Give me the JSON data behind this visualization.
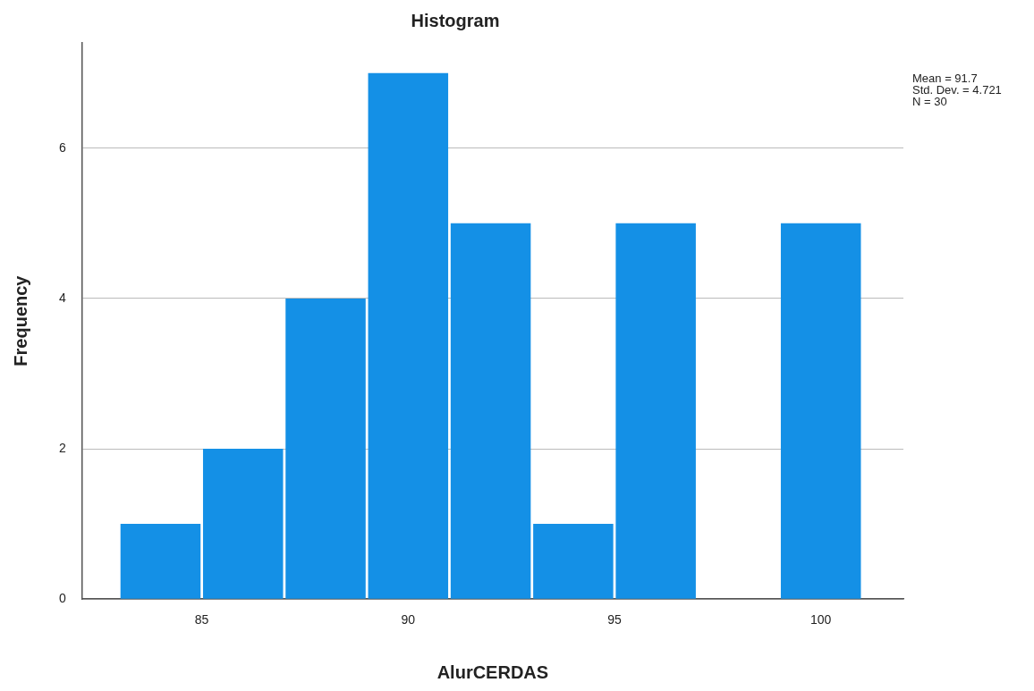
{
  "chart_data": {
    "type": "histogram",
    "title": "Histogram",
    "xlabel": "AlurCERDAS",
    "ylabel": "Frequency",
    "bins": [
      83,
      85,
      87,
      89,
      91,
      93,
      95,
      97,
      99,
      101
    ],
    "values": [
      1,
      2,
      4,
      7,
      5,
      1,
      5,
      0,
      5
    ],
    "color": "#1490e6",
    "xlim": [
      82.1,
      102
    ],
    "xticks": [
      85,
      90,
      95,
      100
    ],
    "ylim": [
      0,
      7.4
    ],
    "yticks": [
      0,
      2,
      4,
      6
    ],
    "grid": "y",
    "annotations": [
      "Mean = 91.7",
      "Std. Dev. = 4.721",
      "N = 30"
    ]
  }
}
